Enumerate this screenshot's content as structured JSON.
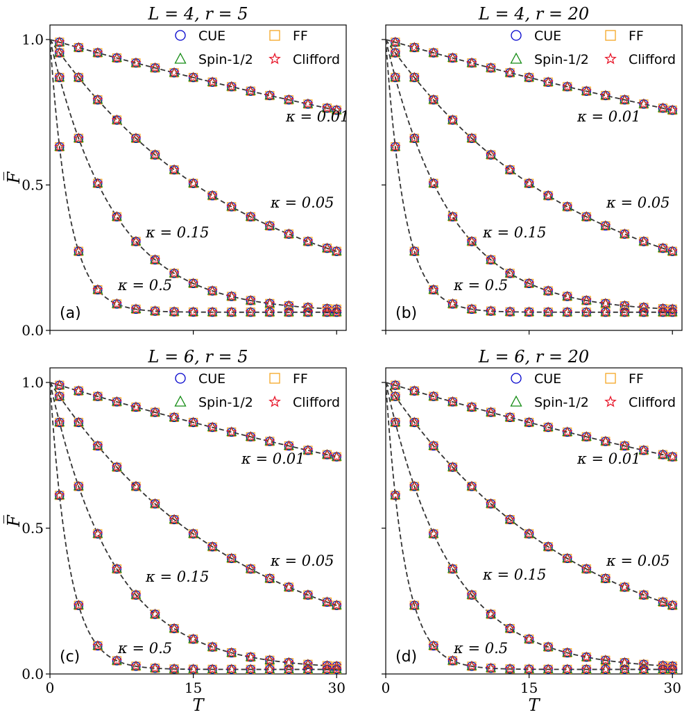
{
  "chart_data": [
    {
      "type": "scatter",
      "panel_label": "(a)",
      "title": "L = 4, r = 5",
      "xlabel": "T",
      "ylabel": "F̅",
      "xlim": [
        0,
        31
      ],
      "ylim": [
        0,
        1.05
      ],
      "xticks": [
        0,
        15,
        30
      ],
      "xtick_labels": [
        "0",
        "15",
        "30"
      ],
      "yticks": [
        0,
        0.5,
        1
      ],
      "ytick_labels": [
        "0.0",
        "0.5",
        "1.0"
      ],
      "show_yticklabels": true,
      "show_xticklabels": false,
      "show_xlabel": false,
      "show_ylabel": true,
      "floor": 0.0625,
      "legend": [
        "CUE",
        "FF",
        "Spin-1/2",
        "Clifford"
      ],
      "legend_position": "top-right",
      "x": [
        1,
        3,
        5,
        7,
        9,
        11,
        13,
        15,
        17,
        19,
        21,
        23,
        25,
        27,
        29,
        30
      ],
      "curves": [
        {
          "kappa": 0.01,
          "label": "κ = 0.01"
        },
        {
          "kappa": 0.05,
          "label": "κ = 0.05"
        },
        {
          "kappa": 0.15,
          "label": "κ = 0.15"
        },
        {
          "kappa": 0.5,
          "label": "κ = 0.5"
        }
      ],
      "series": [
        {
          "name": "CUE",
          "marker": "circle",
          "color": "#0000cc"
        },
        {
          "name": "FF",
          "marker": "square",
          "color": "#f5a623"
        },
        {
          "name": "Spin-1/2",
          "marker": "triangle",
          "color": "#118a11"
        },
        {
          "name": "Clifford",
          "marker": "star",
          "color": "#e8192c"
        }
      ]
    },
    {
      "type": "scatter",
      "panel_label": "(b)",
      "title": "L = 4, r = 20",
      "xlabel": "T",
      "ylabel": "F̅",
      "xlim": [
        0,
        31
      ],
      "ylim": [
        0,
        1.05
      ],
      "xticks": [
        0,
        15,
        30
      ],
      "xtick_labels": [
        "0",
        "15",
        "30"
      ],
      "yticks": [
        0,
        0.5,
        1
      ],
      "ytick_labels": [
        "0.0",
        "0.5",
        "1.0"
      ],
      "show_yticklabels": false,
      "show_xticklabels": false,
      "show_xlabel": false,
      "show_ylabel": false,
      "floor": 0.0625,
      "legend": [
        "CUE",
        "FF",
        "Spin-1/2",
        "Clifford"
      ],
      "legend_position": "top-right",
      "x": [
        1,
        3,
        5,
        7,
        9,
        11,
        13,
        15,
        17,
        19,
        21,
        23,
        25,
        27,
        29,
        30
      ],
      "curves": [
        {
          "kappa": 0.01,
          "label": "κ = 0.01"
        },
        {
          "kappa": 0.05,
          "label": "κ = 0.05"
        },
        {
          "kappa": 0.15,
          "label": "κ = 0.15"
        },
        {
          "kappa": 0.5,
          "label": "κ = 0.5"
        }
      ],
      "series": [
        {
          "name": "CUE",
          "marker": "circle",
          "color": "#0000cc"
        },
        {
          "name": "FF",
          "marker": "square",
          "color": "#f5a623"
        },
        {
          "name": "Spin-1/2",
          "marker": "triangle",
          "color": "#118a11"
        },
        {
          "name": "Clifford",
          "marker": "star",
          "color": "#e8192c"
        }
      ]
    },
    {
      "type": "scatter",
      "panel_label": "(c)",
      "title": "L = 6, r = 5",
      "xlabel": "T",
      "ylabel": "F̅",
      "xlim": [
        0,
        31
      ],
      "ylim": [
        0,
        1.05
      ],
      "xticks": [
        0,
        15,
        30
      ],
      "xtick_labels": [
        "0",
        "15",
        "30"
      ],
      "yticks": [
        0,
        0.5,
        1
      ],
      "ytick_labels": [
        "0.0",
        "0.5",
        "1.0"
      ],
      "show_yticklabels": true,
      "show_xticklabels": true,
      "show_xlabel": true,
      "show_ylabel": true,
      "floor": 0.015625,
      "legend": [
        "CUE",
        "FF",
        "Spin-1/2",
        "Clifford"
      ],
      "legend_position": "top-right",
      "x": [
        1,
        3,
        5,
        7,
        9,
        11,
        13,
        15,
        17,
        19,
        21,
        23,
        25,
        27,
        29,
        30
      ],
      "curves": [
        {
          "kappa": 0.01,
          "label": "κ = 0.01"
        },
        {
          "kappa": 0.05,
          "label": "κ = 0.05"
        },
        {
          "kappa": 0.15,
          "label": "κ = 0.15"
        },
        {
          "kappa": 0.5,
          "label": "κ = 0.5"
        }
      ],
      "series": [
        {
          "name": "CUE",
          "marker": "circle",
          "color": "#0000cc"
        },
        {
          "name": "FF",
          "marker": "square",
          "color": "#f5a623"
        },
        {
          "name": "Spin-1/2",
          "marker": "triangle",
          "color": "#118a11"
        },
        {
          "name": "Clifford",
          "marker": "star",
          "color": "#e8192c"
        }
      ]
    },
    {
      "type": "scatter",
      "panel_label": "(d)",
      "title": "L = 6, r = 20",
      "xlabel": "T",
      "ylabel": "F̅",
      "xlim": [
        0,
        31
      ],
      "ylim": [
        0,
        1.05
      ],
      "xticks": [
        0,
        15,
        30
      ],
      "xtick_labels": [
        "0",
        "15",
        "30"
      ],
      "yticks": [
        0,
        0.5,
        1
      ],
      "ytick_labels": [
        "0.0",
        "0.5",
        "1.0"
      ],
      "show_yticklabels": false,
      "show_xticklabels": true,
      "show_xlabel": true,
      "show_ylabel": false,
      "floor": 0.015625,
      "legend": [
        "CUE",
        "FF",
        "Spin-1/2",
        "Clifford"
      ],
      "legend_position": "top-right",
      "x": [
        1,
        3,
        5,
        7,
        9,
        11,
        13,
        15,
        17,
        19,
        21,
        23,
        25,
        27,
        29,
        30
      ],
      "curves": [
        {
          "kappa": 0.01,
          "label": "κ = 0.01"
        },
        {
          "kappa": 0.05,
          "label": "κ = 0.05"
        },
        {
          "kappa": 0.15,
          "label": "κ = 0.15"
        },
        {
          "kappa": 0.5,
          "label": "κ = 0.5"
        }
      ],
      "series": [
        {
          "name": "CUE",
          "marker": "circle",
          "color": "#0000cc"
        },
        {
          "name": "FF",
          "marker": "square",
          "color": "#f5a623"
        },
        {
          "name": "Spin-1/2",
          "marker": "triangle",
          "color": "#118a11"
        },
        {
          "name": "Clifford",
          "marker": "star",
          "color": "#e8192c"
        }
      ]
    }
  ]
}
